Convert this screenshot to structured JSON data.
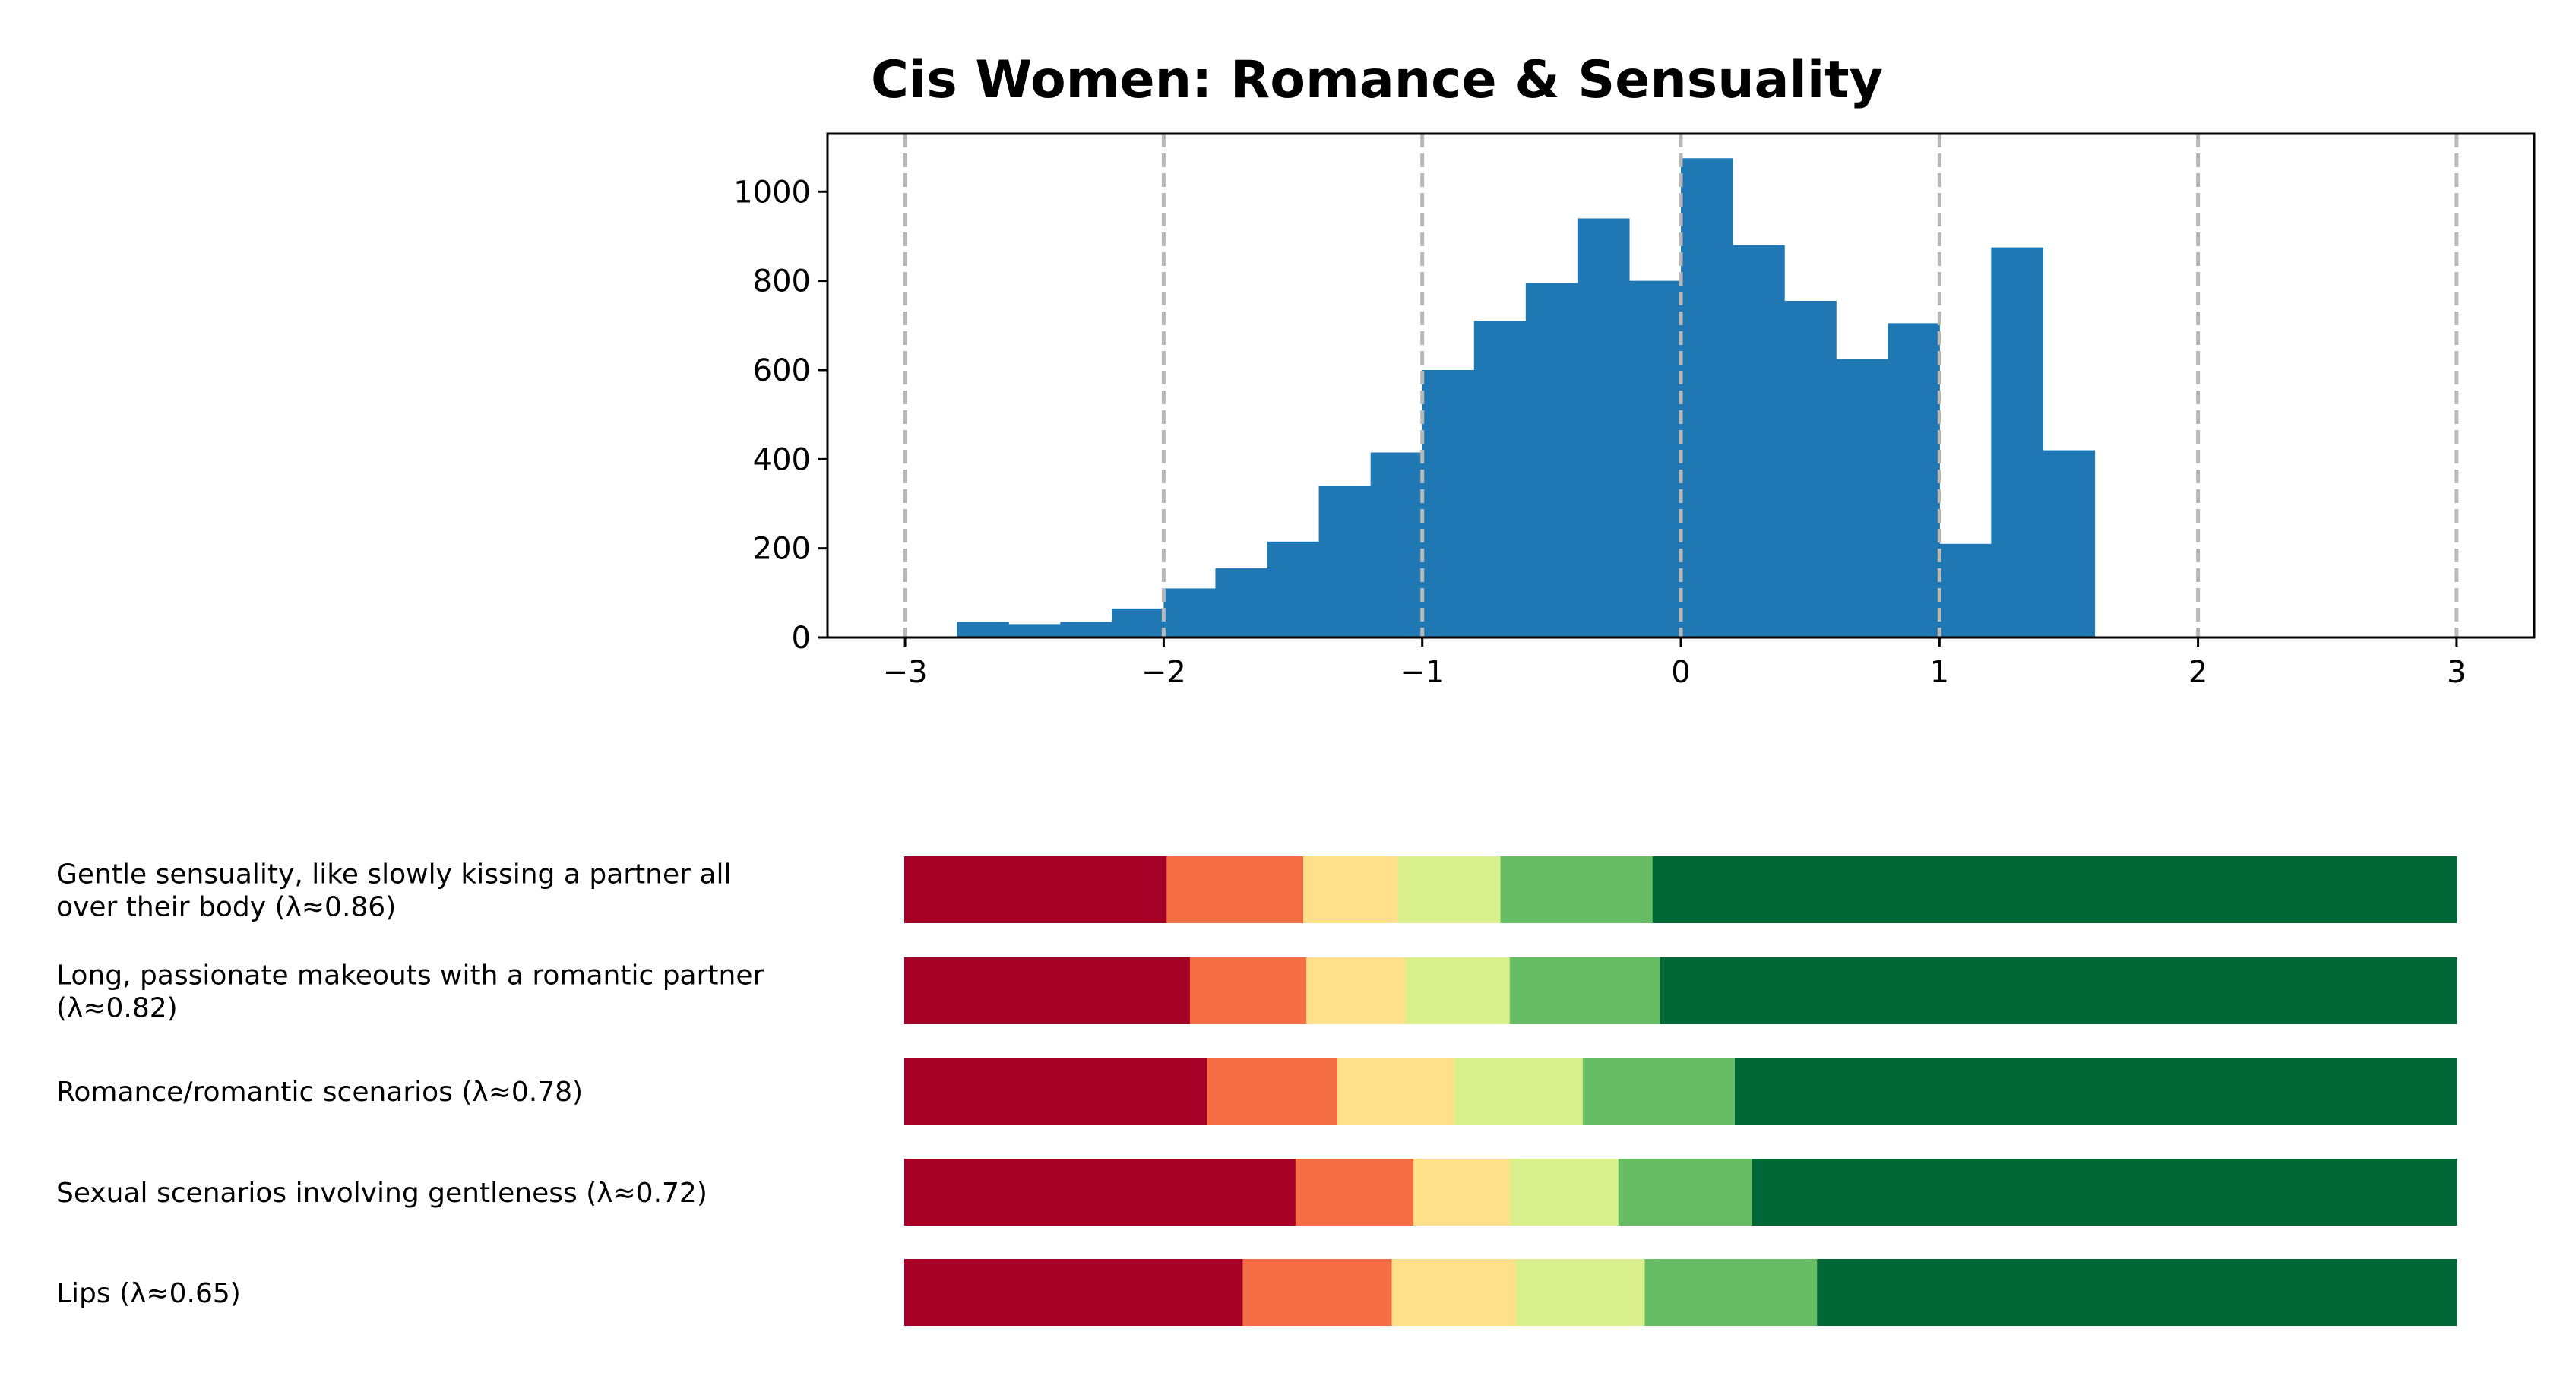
{
  "chart_data": [
    {
      "type": "bar",
      "subtype": "histogram",
      "title": "Cis Women: Romance & Sensuality",
      "xlabel": "",
      "ylabel": "",
      "xlim": [
        -3.3,
        3.3
      ],
      "ylim": [
        0,
        1130
      ],
      "x_ticks": [
        -3,
        -2,
        -1,
        0,
        1,
        2,
        3
      ],
      "x_tick_labels": [
        "−3",
        "−2",
        "−1",
        "0",
        "1",
        "2",
        "3"
      ],
      "y_ticks": [
        0,
        200,
        400,
        600,
        800,
        1000
      ],
      "y_tick_labels": [
        "0",
        "200",
        "400",
        "600",
        "800",
        "1000"
      ],
      "vertical_gridlines_dashed": [
        -3,
        -2,
        -1,
        0,
        1,
        2,
        3
      ],
      "bar_color": "#1f77b4",
      "bin_edges": [
        -2.8,
        -2.6,
        -2.4,
        -2.2,
        -2.0,
        -1.8,
        -1.6,
        -1.4,
        -1.2,
        -1.0,
        -0.8,
        -0.6,
        -0.4,
        -0.2,
        0.0,
        0.2,
        0.4,
        0.6,
        0.8,
        1.0,
        1.2,
        1.4,
        1.6
      ],
      "values": [
        35,
        30,
        35,
        65,
        110,
        155,
        215,
        340,
        415,
        600,
        710,
        795,
        940,
        800,
        1075,
        880,
        755,
        625,
        705,
        210,
        875,
        420
      ]
    },
    {
      "type": "bar",
      "subtype": "stacked-horizontal-percent",
      "segment_colors": [
        "#a50026",
        "#f46d43",
        "#fee08b",
        "#d9ef8b",
        "#66bd63",
        "#006837"
      ],
      "categories": [
        "Gentle sensuality, like slowly kissing a partner all over their body (λ≈0.86)",
        "Long, passionate makeouts with a romantic partner (λ≈0.82)",
        "Romance/romantic scenarios (λ≈0.78)",
        "Sexual scenarios involving gentleness (λ≈0.72)",
        "Lips (λ≈0.65)"
      ],
      "label_lines": [
        [
          "Gentle sensuality, like slowly kissing a partner all",
          "over their body (λ≈0.86)"
        ],
        [
          "Long, passionate makeouts with a romantic partner",
          "(λ≈0.82)"
        ],
        [
          "Romance/romantic scenarios (λ≈0.78)"
        ],
        [
          "Sexual scenarios involving gentleness (λ≈0.72)"
        ],
        [
          "Lips (λ≈0.65)"
        ]
      ],
      "values": [
        [
          16.9,
          8.8,
          6.1,
          6.6,
          9.8,
          51.8
        ],
        [
          18.4,
          7.5,
          6.4,
          6.7,
          9.7,
          51.3
        ],
        [
          19.5,
          8.4,
          7.5,
          8.3,
          9.8,
          46.5
        ],
        [
          25.2,
          7.6,
          6.2,
          7.0,
          8.6,
          45.4
        ],
        [
          21.8,
          9.6,
          8.0,
          8.3,
          11.1,
          41.2
        ]
      ]
    }
  ]
}
